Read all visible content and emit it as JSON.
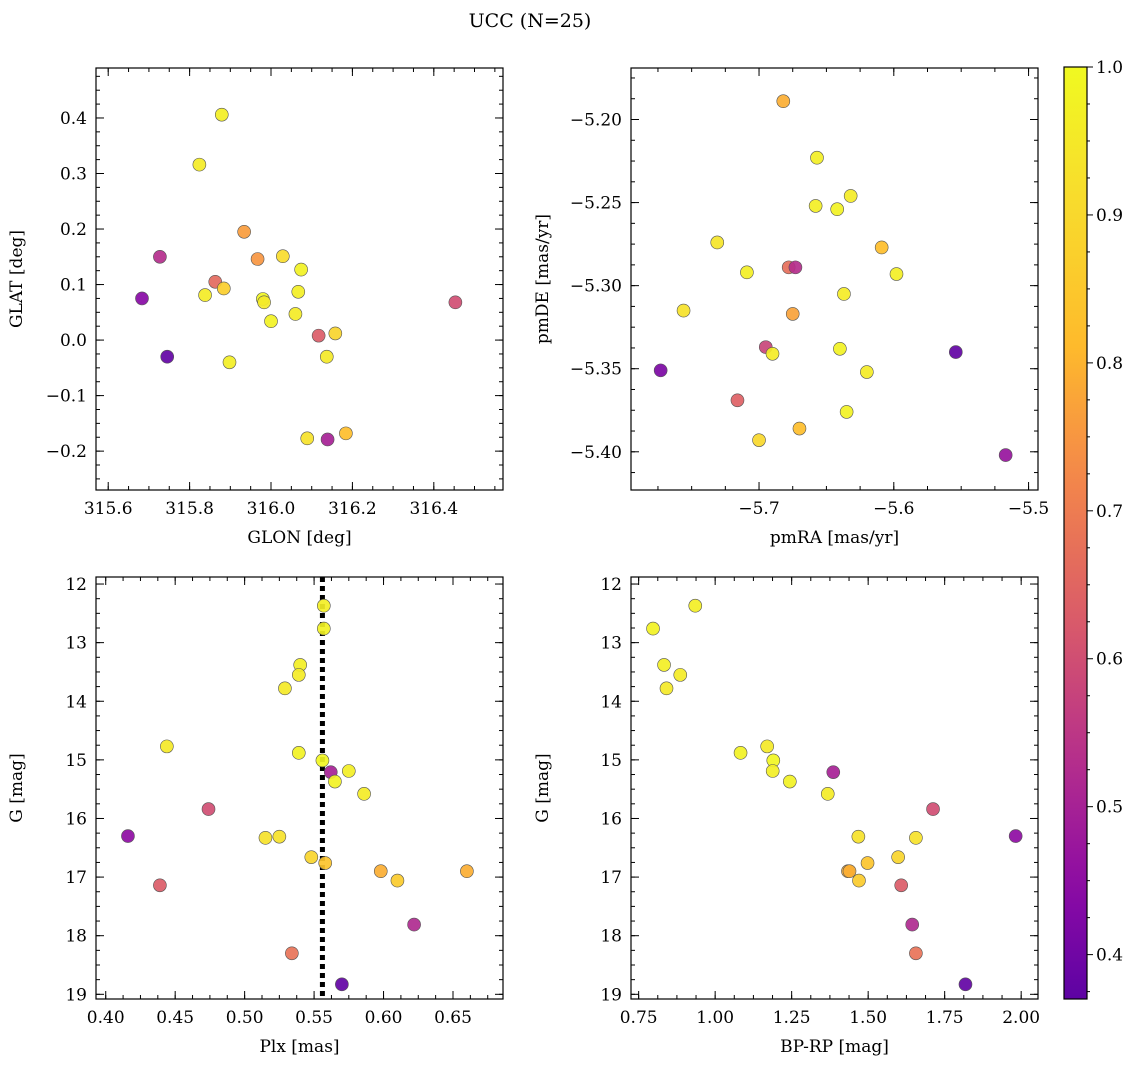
{
  "chart_data": {
    "title": "UCC (N=25)",
    "colorbar": {
      "colormap": "plasma",
      "range": [
        0.37,
        1.0
      ],
      "ticks": [
        0.4,
        0.5,
        0.6,
        0.7,
        0.8,
        0.9,
        1.0
      ],
      "tick_labels": [
        "0.4",
        "0.5",
        "0.6",
        "0.7",
        "0.8",
        "0.9",
        "1.0"
      ]
    },
    "panels": [
      {
        "type": "scatter",
        "xlabel": "GLON [deg]",
        "ylabel": "GLAT [deg]",
        "xlim": [
          315.57,
          316.57
        ],
        "ylim": [
          -0.27,
          0.49
        ],
        "invert_y": false,
        "xticks": [
          315.6,
          315.8,
          316.0,
          316.2,
          316.4
        ],
        "xtick_labels": [
          "315.6",
          "315.8",
          "316.0",
          "316.2",
          "316.4"
        ],
        "yticks": [
          -0.2,
          -0.1,
          0.0,
          0.1,
          0.2,
          0.3,
          0.4
        ],
        "ytick_labels": [
          "−0.2",
          "−0.1",
          "0.0",
          "0.1",
          "0.2",
          "0.3",
          "0.4"
        ],
        "points": [
          {
            "x": 315.879,
            "y": 0.406,
            "c": 0.97
          },
          {
            "x": 315.824,
            "y": 0.316,
            "c": 0.96
          },
          {
            "x": 315.934,
            "y": 0.195,
            "c": 0.76
          },
          {
            "x": 316.029,
            "y": 0.151,
            "c": 0.91
          },
          {
            "x": 315.967,
            "y": 0.146,
            "c": 0.75
          },
          {
            "x": 315.727,
            "y": 0.15,
            "c": 0.53
          },
          {
            "x": 316.074,
            "y": 0.127,
            "c": 0.98
          },
          {
            "x": 315.863,
            "y": 0.105,
            "c": 0.66
          },
          {
            "x": 315.884,
            "y": 0.093,
            "c": 0.87
          },
          {
            "x": 316.067,
            "y": 0.087,
            "c": 0.97
          },
          {
            "x": 315.838,
            "y": 0.081,
            "c": 0.96
          },
          {
            "x": 315.98,
            "y": 0.074,
            "c": 0.99
          },
          {
            "x": 315.683,
            "y": 0.075,
            "c": 0.44
          },
          {
            "x": 315.983,
            "y": 0.068,
            "c": 0.95
          },
          {
            "x": 316.453,
            "y": 0.068,
            "c": 0.6
          },
          {
            "x": 316.06,
            "y": 0.047,
            "c": 0.96
          },
          {
            "x": 316.0,
            "y": 0.034,
            "c": 0.98
          },
          {
            "x": 316.158,
            "y": 0.012,
            "c": 0.89
          },
          {
            "x": 316.117,
            "y": 0.008,
            "c": 0.63
          },
          {
            "x": 315.745,
            "y": -0.03,
            "c": 0.38
          },
          {
            "x": 316.137,
            "y": -0.03,
            "c": 0.95
          },
          {
            "x": 315.898,
            "y": -0.04,
            "c": 0.97
          },
          {
            "x": 316.184,
            "y": -0.168,
            "c": 0.82
          },
          {
            "x": 316.089,
            "y": -0.177,
            "c": 0.93
          },
          {
            "x": 316.139,
            "y": -0.179,
            "c": 0.5
          }
        ]
      },
      {
        "type": "scatter",
        "xlabel": "pmRA [mas/yr]",
        "ylabel": "pmDE [mas/yr]",
        "xlim": [
          -5.795,
          -5.493
        ],
        "ylim": [
          -5.423,
          -5.169
        ],
        "invert_y": false,
        "xticks": [
          -5.7,
          -5.6,
          -5.5
        ],
        "xtick_labels": [
          "−5.7",
          "−5.6",
          "−5.5"
        ],
        "yticks": [
          -5.4,
          -5.35,
          -5.3,
          -5.25,
          -5.2
        ],
        "ytick_labels": [
          "−5.40",
          "−5.35",
          "−5.30",
          "−5.25",
          "−5.20"
        ],
        "points": [
          {
            "x": -5.682,
            "y": -5.189,
            "c": 0.79
          },
          {
            "x": -5.657,
            "y": -5.223,
            "c": 0.97
          },
          {
            "x": -5.632,
            "y": -5.246,
            "c": 0.96
          },
          {
            "x": -5.642,
            "y": -5.254,
            "c": 0.98
          },
          {
            "x": -5.658,
            "y": -5.252,
            "c": 0.97
          },
          {
            "x": -5.731,
            "y": -5.274,
            "c": 0.94
          },
          {
            "x": -5.609,
            "y": -5.277,
            "c": 0.82
          },
          {
            "x": -5.678,
            "y": -5.289,
            "c": 0.67
          },
          {
            "x": -5.673,
            "y": -5.289,
            "c": 0.53
          },
          {
            "x": -5.709,
            "y": -5.292,
            "c": 0.97
          },
          {
            "x": -5.598,
            "y": -5.293,
            "c": 0.97
          },
          {
            "x": -5.637,
            "y": -5.305,
            "c": 0.96
          },
          {
            "x": -5.756,
            "y": -5.315,
            "c": 0.93
          },
          {
            "x": -5.675,
            "y": -5.317,
            "c": 0.77
          },
          {
            "x": -5.695,
            "y": -5.337,
            "c": 0.58
          },
          {
            "x": -5.64,
            "y": -5.338,
            "c": 0.98
          },
          {
            "x": -5.69,
            "y": -5.341,
            "c": 0.96
          },
          {
            "x": -5.554,
            "y": -5.34,
            "c": 0.38
          },
          {
            "x": -5.773,
            "y": -5.351,
            "c": 0.42
          },
          {
            "x": -5.62,
            "y": -5.352,
            "c": 0.96
          },
          {
            "x": -5.716,
            "y": -5.369,
            "c": 0.64
          },
          {
            "x": -5.635,
            "y": -5.376,
            "c": 0.98
          },
          {
            "x": -5.67,
            "y": -5.386,
            "c": 0.82
          },
          {
            "x": -5.7,
            "y": -5.393,
            "c": 0.9
          },
          {
            "x": -5.517,
            "y": -5.402,
            "c": 0.47
          }
        ]
      },
      {
        "type": "scatter",
        "xlabel": "Plx [mas]",
        "ylabel": "G [mag]",
        "xlim": [
          0.393,
          0.686
        ],
        "ylim": [
          11.88,
          19.08
        ],
        "invert_y": true,
        "xticks": [
          0.4,
          0.45,
          0.5,
          0.55,
          0.6,
          0.65
        ],
        "xtick_labels": [
          "0.40",
          "0.45",
          "0.50",
          "0.55",
          "0.60",
          "0.65"
        ],
        "yticks": [
          12,
          13,
          14,
          15,
          16,
          17,
          18,
          19
        ],
        "ytick_labels": [
          "12",
          "13",
          "14",
          "15",
          "16",
          "17",
          "18",
          "19"
        ],
        "vline": 0.556,
        "points": [
          {
            "x": 0.557,
            "y": 12.37,
            "c": 0.97
          },
          {
            "x": 0.557,
            "y": 12.76,
            "c": 0.98
          },
          {
            "x": 0.54,
            "y": 13.38,
            "c": 0.97
          },
          {
            "x": 0.539,
            "y": 13.55,
            "c": 0.96
          },
          {
            "x": 0.529,
            "y": 13.78,
            "c": 0.95
          },
          {
            "x": 0.444,
            "y": 14.77,
            "c": 0.95
          },
          {
            "x": 0.539,
            "y": 14.88,
            "c": 0.98
          },
          {
            "x": 0.556,
            "y": 15.01,
            "c": 0.99
          },
          {
            "x": 0.575,
            "y": 15.19,
            "c": 0.97
          },
          {
            "x": 0.562,
            "y": 15.21,
            "c": 0.5
          },
          {
            "x": 0.565,
            "y": 15.37,
            "c": 0.98
          },
          {
            "x": 0.586,
            "y": 15.58,
            "c": 0.96
          },
          {
            "x": 0.474,
            "y": 15.84,
            "c": 0.6
          },
          {
            "x": 0.416,
            "y": 16.3,
            "c": 0.45
          },
          {
            "x": 0.525,
            "y": 16.31,
            "c": 0.93
          },
          {
            "x": 0.515,
            "y": 16.33,
            "c": 0.93
          },
          {
            "x": 0.548,
            "y": 16.66,
            "c": 0.89
          },
          {
            "x": 0.558,
            "y": 16.76,
            "c": 0.84
          },
          {
            "x": 0.66,
            "y": 16.9,
            "c": 0.79
          },
          {
            "x": 0.598,
            "y": 16.9,
            "c": 0.79
          },
          {
            "x": 0.61,
            "y": 17.06,
            "c": 0.86
          },
          {
            "x": 0.439,
            "y": 17.14,
            "c": 0.63
          },
          {
            "x": 0.622,
            "y": 17.81,
            "c": 0.52
          },
          {
            "x": 0.534,
            "y": 18.3,
            "c": 0.68
          },
          {
            "x": 0.57,
            "y": 18.83,
            "c": 0.38
          }
        ]
      },
      {
        "type": "scatter",
        "xlabel": "BP-RP [mag]",
        "ylabel": "G [mag]",
        "xlim": [
          0.725,
          2.055
        ],
        "ylim": [
          11.88,
          19.08
        ],
        "invert_y": true,
        "xticks": [
          0.75,
          1.0,
          1.25,
          1.5,
          1.75,
          2.0
        ],
        "xtick_labels": [
          "0.75",
          "1.00",
          "1.25",
          "1.50",
          "1.75",
          "2.00"
        ],
        "yticks": [
          12,
          13,
          14,
          15,
          16,
          17,
          18,
          19
        ],
        "ytick_labels": [
          "12",
          "13",
          "14",
          "15",
          "16",
          "17",
          "18",
          "19"
        ],
        "points": [
          {
            "x": 0.935,
            "y": 12.37,
            "c": 0.97
          },
          {
            "x": 0.797,
            "y": 12.76,
            "c": 0.98
          },
          {
            "x": 0.833,
            "y": 13.38,
            "c": 0.97
          },
          {
            "x": 0.886,
            "y": 13.55,
            "c": 0.96
          },
          {
            "x": 0.841,
            "y": 13.78,
            "c": 0.95
          },
          {
            "x": 1.17,
            "y": 14.77,
            "c": 0.95
          },
          {
            "x": 1.083,
            "y": 14.88,
            "c": 0.98
          },
          {
            "x": 1.19,
            "y": 15.01,
            "c": 0.99
          },
          {
            "x": 1.188,
            "y": 15.19,
            "c": 0.97
          },
          {
            "x": 1.386,
            "y": 15.21,
            "c": 0.5
          },
          {
            "x": 1.244,
            "y": 15.37,
            "c": 0.98
          },
          {
            "x": 1.368,
            "y": 15.58,
            "c": 0.96
          },
          {
            "x": 1.712,
            "y": 15.84,
            "c": 0.6
          },
          {
            "x": 1.982,
            "y": 16.3,
            "c": 0.45
          },
          {
            "x": 1.468,
            "y": 16.31,
            "c": 0.93
          },
          {
            "x": 1.656,
            "y": 16.33,
            "c": 0.93
          },
          {
            "x": 1.598,
            "y": 16.66,
            "c": 0.89
          },
          {
            "x": 1.498,
            "y": 16.76,
            "c": 0.84
          },
          {
            "x": 1.434,
            "y": 16.9,
            "c": 0.79
          },
          {
            "x": 1.439,
            "y": 16.9,
            "c": 0.79
          },
          {
            "x": 1.47,
            "y": 17.06,
            "c": 0.86
          },
          {
            "x": 1.608,
            "y": 17.14,
            "c": 0.63
          },
          {
            "x": 1.644,
            "y": 17.81,
            "c": 0.52
          },
          {
            "x": 1.656,
            "y": 18.3,
            "c": 0.68
          },
          {
            "x": 1.818,
            "y": 18.83,
            "c": 0.38
          }
        ]
      }
    ]
  }
}
